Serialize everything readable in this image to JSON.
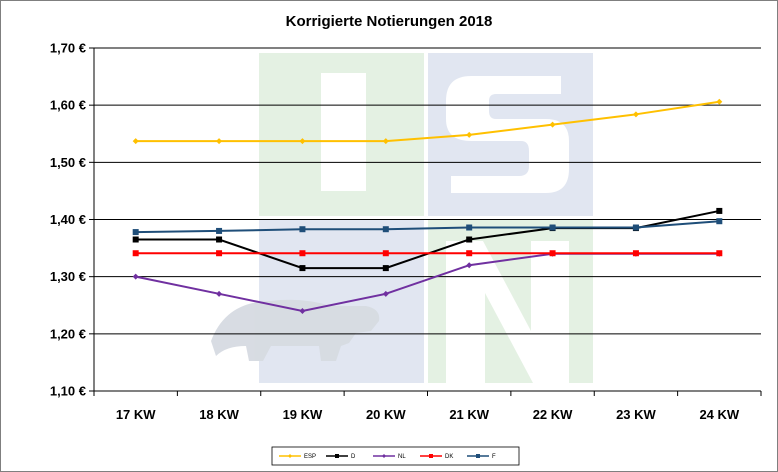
{
  "chart_data": {
    "type": "line",
    "title": "Korrigierte Notierungen 2018",
    "categories": [
      "17 KW",
      "18 KW",
      "19 KW",
      "20 KW",
      "21 KW",
      "22 KW",
      "23 KW",
      "24 KW"
    ],
    "ylim": [
      1.1,
      1.7
    ],
    "yticks": [
      1.1,
      1.2,
      1.3,
      1.4,
      1.5,
      1.6,
      1.7
    ],
    "ytick_labels": [
      "1,10 €",
      "1,20 €",
      "1,30 €",
      "1,40 €",
      "1,50 €",
      "1,60 €",
      "1,70 €"
    ],
    "grid": true,
    "legend_position": "bottom",
    "watermark": "ISN",
    "series": [
      {
        "name": "ESP",
        "color": "#FFC000",
        "marker": "diamond",
        "values": [
          1.537,
          1.537,
          1.537,
          1.537,
          1.548,
          1.566,
          1.584,
          1.606
        ]
      },
      {
        "name": "D",
        "color": "#000000",
        "marker": "square",
        "values": [
          1.365,
          1.365,
          1.315,
          1.315,
          1.365,
          1.385,
          1.385,
          1.415
        ]
      },
      {
        "name": "NL",
        "color": "#7030A0",
        "marker": "diamond",
        "values": [
          1.3,
          1.27,
          1.24,
          1.27,
          1.32,
          1.34,
          1.34,
          1.34
        ]
      },
      {
        "name": "DK",
        "color": "#FF0000",
        "marker": "square",
        "values": [
          1.341,
          1.341,
          1.341,
          1.341,
          1.341,
          1.341,
          1.341,
          1.341
        ]
      },
      {
        "name": "F",
        "color": "#1F4E79",
        "marker": "square",
        "values": [
          1.378,
          1.38,
          1.383,
          1.383,
          1.386,
          1.386,
          1.386,
          1.397
        ]
      }
    ]
  }
}
